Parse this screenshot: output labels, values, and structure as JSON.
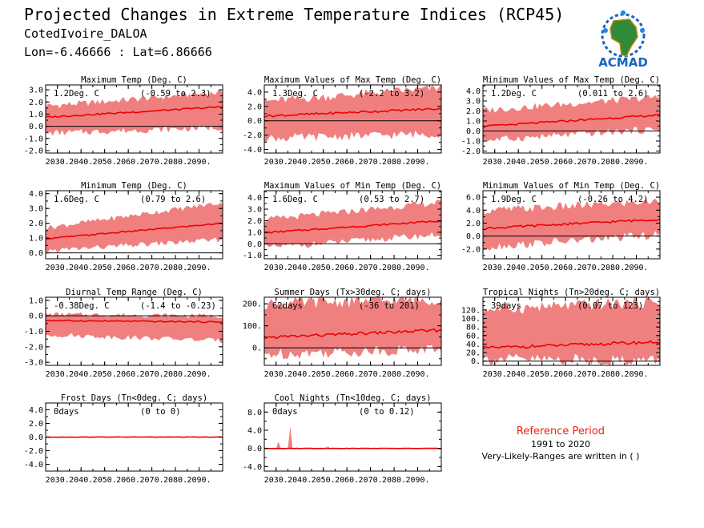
{
  "header": {
    "title": "Projected Changes in Extreme Temperature Indices (RCP45)",
    "location": "CotedIvoire_DALOA",
    "coords": "Lon=-6.46666 : Lat=6.86666"
  },
  "logo": {
    "text": "ACMAD",
    "icon": "africa-map-logo"
  },
  "reference": {
    "title": "Reference Period",
    "years": "1991 to 2020",
    "note": "Very-Likely-Ranges are written in ( )"
  },
  "colors": {
    "line": "#ee0000",
    "band": "#f08080",
    "zero": "#000000"
  },
  "chart_data": [
    {
      "type": "line",
      "title": "Maximum Temp (Deg. C)",
      "mean_label": "1.2Deg. C",
      "range_label": "(-0.59 to 2.3)",
      "xticks": [
        "2030.",
        "2040.",
        "2050.",
        "2060.",
        "2070.",
        "2080.",
        "2090."
      ],
      "xlim": [
        2025,
        2100
      ],
      "ylim": [
        -2.2,
        3.4
      ],
      "yticks": [
        -2.0,
        -1.0,
        0.0,
        1.0,
        2.0,
        3.0
      ],
      "ytick_labels": [
        "-2.0",
        "-1.0",
        "0.0",
        "1.0",
        "2.0",
        "3.0"
      ],
      "mean_start": 0.7,
      "mean_end": 1.6,
      "band_lo_start": -0.6,
      "band_lo_end": -0.1,
      "band_hi_start": 1.6,
      "band_hi_end": 2.8
    },
    {
      "type": "line",
      "title": "Maximum Values of Max Temp (Deg. C)",
      "mean_label": "1.3Deg. C",
      "range_label": "(-2.2 to 3.2)",
      "xticks": [
        "2030.",
        "2040.",
        "2050.",
        "2060.",
        "2070.",
        "2080.",
        "2090."
      ],
      "xlim": [
        2025,
        2100
      ],
      "ylim": [
        -4.5,
        5.0
      ],
      "yticks": [
        -4.0,
        -2.0,
        0.0,
        2.0,
        4.0
      ],
      "ytick_labels": [
        "-4.0",
        "-2.0",
        "0.0",
        "2.0",
        "4.0"
      ],
      "mean_start": 0.6,
      "mean_end": 1.7,
      "band_lo_start": -2.5,
      "band_lo_end": -1.8,
      "band_hi_start": 2.6,
      "band_hi_end": 4.6
    },
    {
      "type": "line",
      "title": "Minimum Values of Max Temp (Deg. C)",
      "mean_label": "1.2Deg. C",
      "range_label": "(0.011 to 2.6)",
      "xticks": [
        "2030.",
        "2040.",
        "2050.",
        "2060.",
        "2070.",
        "2080.",
        "2090."
      ],
      "xlim": [
        2025,
        2100
      ],
      "ylim": [
        -2.2,
        4.6
      ],
      "yticks": [
        -2.0,
        -1.0,
        0.0,
        1.0,
        2.0,
        3.0,
        4.0
      ],
      "ytick_labels": [
        "-2.0",
        "-1.0",
        "0.0",
        "1.0",
        "2.0",
        "3.0",
        "4.0"
      ],
      "mean_start": 0.4,
      "mean_end": 1.6,
      "band_lo_start": -1.0,
      "band_lo_end": 0.2,
      "band_hi_start": 2.0,
      "band_hi_end": 3.4
    },
    {
      "type": "line",
      "title": "Minimum Temp (Deg. C)",
      "mean_label": "1.6Deg. C",
      "range_label": "(0.79 to 2.6)",
      "xticks": [
        "2030.",
        "2040.",
        "2050.",
        "2060.",
        "2070.",
        "2080.",
        "2090."
      ],
      "xlim": [
        2025,
        2100
      ],
      "ylim": [
        -0.4,
        4.2
      ],
      "yticks": [
        0.0,
        1.0,
        2.0,
        3.0,
        4.0
      ],
      "ytick_labels": [
        "0.0",
        "1.0",
        "2.0",
        "3.0",
        "4.0"
      ],
      "mean_start": 0.9,
      "mean_end": 2.0,
      "band_lo_start": 0.1,
      "band_lo_end": 0.9,
      "band_hi_start": 1.6,
      "band_hi_end": 3.4
    },
    {
      "type": "line",
      "title": "Maximum Values of Min Temp (Deg. C)",
      "mean_label": "1.6Deg. C",
      "range_label": "(0.53 to 2.7)",
      "xticks": [
        "2030.",
        "2040.",
        "2050.",
        "2060.",
        "2070.",
        "2080.",
        "2090."
      ],
      "xlim": [
        2025,
        2100
      ],
      "ylim": [
        -1.3,
        4.6
      ],
      "yticks": [
        -1.0,
        0.0,
        1.0,
        2.0,
        3.0,
        4.0
      ],
      "ytick_labels": [
        "-1.0",
        "0.0",
        "1.0",
        "2.0",
        "3.0",
        "4.0"
      ],
      "mean_start": 0.9,
      "mean_end": 2.0,
      "band_lo_start": -0.4,
      "band_lo_end": 0.8,
      "band_hi_start": 2.0,
      "band_hi_end": 3.6
    },
    {
      "type": "line",
      "title": "Minimum Values of Min Temp (Deg. C)",
      "mean_label": "1.9Deg. C",
      "range_label": "(-0.26 to 4.2)",
      "xticks": [
        "2030.",
        "2040.",
        "2050.",
        "2060.",
        "2070.",
        "2080.",
        "2090."
      ],
      "xlim": [
        2025,
        2100
      ],
      "ylim": [
        -3.5,
        7.0
      ],
      "yticks": [
        -2.0,
        0.0,
        2.0,
        4.0,
        6.0
      ],
      "ytick_labels": [
        "-2.0",
        "0.0",
        "2.0",
        "4.0",
        "6.0"
      ],
      "mean_start": 1.1,
      "mean_end": 2.6,
      "band_lo_start": -1.8,
      "band_lo_end": 0.2,
      "band_hi_start": 3.8,
      "band_hi_end": 5.4
    },
    {
      "type": "line",
      "title": "Diurnal Temp Range (Deg. C)",
      "mean_label": "-0.38Deg. C",
      "range_label": "(-1.4 to -0.23)",
      "xticks": [
        "2030.",
        "2040.",
        "2050.",
        "2060.",
        "2070.",
        "2080.",
        "2090."
      ],
      "xlim": [
        2025,
        2100
      ],
      "ylim": [
        -3.2,
        1.2
      ],
      "yticks": [
        -3.0,
        -2.0,
        -1.0,
        0.0,
        1.0
      ],
      "ytick_labels": [
        "-3.0",
        "-2.0",
        "-1.0",
        "0.0",
        "1.0"
      ],
      "mean_start": -0.3,
      "mean_end": -0.4,
      "band_lo_start": -1.2,
      "band_lo_end": -1.6,
      "band_hi_start": 0.1,
      "band_hi_end": 0.0
    },
    {
      "type": "line",
      "title": "Summer Days (Tx>30deg. C; days)",
      "mean_label": "62days",
      "range_label": "(-36 to 201)",
      "xticks": [
        "2030.",
        "2040.",
        "2050.",
        "2060.",
        "2070.",
        "2080.",
        "2090."
      ],
      "xlim": [
        2025,
        2100
      ],
      "ylim": [
        -80,
        230
      ],
      "yticks": [
        0,
        100,
        200
      ],
      "ytick_labels": [
        "0.",
        "100.",
        "200."
      ],
      "mean_start": 45,
      "mean_end": 80,
      "band_lo_start": -30,
      "band_lo_end": -5,
      "band_hi_start": 200,
      "band_hi_end": 220
    },
    {
      "type": "line",
      "title": "Tropical Nights (Tn>20deg. C; days)",
      "mean_label": "39days",
      "range_label": "(0.07 to 123)",
      "xticks": [
        "2030.",
        "2040.",
        "2050.",
        "2060.",
        "2070.",
        "2080.",
        "2090."
      ],
      "xlim": [
        2025,
        2100
      ],
      "ylim": [
        -10,
        150
      ],
      "yticks": [
        0,
        20,
        40,
        60,
        80,
        100,
        120
      ],
      "ytick_labels": [
        "0.",
        "20.",
        "40.",
        "60.",
        "80.",
        "100.",
        "120."
      ],
      "mean_start": 30,
      "mean_end": 45,
      "band_lo_start": 5,
      "band_lo_end": 2,
      "band_hi_start": 120,
      "band_hi_end": 140
    },
    {
      "type": "line",
      "title": "Frost Days (Tn<0deg. C; days)",
      "mean_label": "0days",
      "range_label": "(0 to 0)",
      "xticks": [
        "2030.",
        "2040.",
        "2050.",
        "2060.",
        "2070.",
        "2080.",
        "2090."
      ],
      "xlim": [
        2025,
        2100
      ],
      "ylim": [
        -5,
        5
      ],
      "yticks": [
        -4.0,
        -2.0,
        0.0,
        2.0,
        4.0
      ],
      "ytick_labels": [
        "-4.0",
        "-2.0",
        "0.0",
        "2.0",
        "4.0"
      ],
      "mean_start": 0,
      "mean_end": 0,
      "band_lo_start": 0,
      "band_lo_end": 0,
      "band_hi_start": 0,
      "band_hi_end": 0
    },
    {
      "type": "line",
      "title": "Cool Nights (Tn<10deg. C; days)",
      "mean_label": "0days",
      "range_label": "(0 to 0.12)",
      "xticks": [
        "2030.",
        "2040.",
        "2050.",
        "2060.",
        "2070.",
        "2080.",
        "2090."
      ],
      "xlim": [
        2025,
        2100
      ],
      "ylim": [
        -5,
        10
      ],
      "yticks": [
        -4.0,
        0.0,
        4.0,
        8.0
      ],
      "ytick_labels": [
        "-4.0",
        "0.0",
        "4.0",
        "8.0"
      ],
      "mean_start": 0,
      "mean_end": 0,
      "band_lo_start": 0,
      "band_lo_end": 0,
      "band_hi_start": 0,
      "band_hi_end": 0,
      "spikes": [
        [
          2031,
          1.5
        ],
        [
          2036,
          4.8
        ],
        [
          2052,
          0.4
        ],
        [
          2097,
          0.3
        ]
      ]
    }
  ]
}
